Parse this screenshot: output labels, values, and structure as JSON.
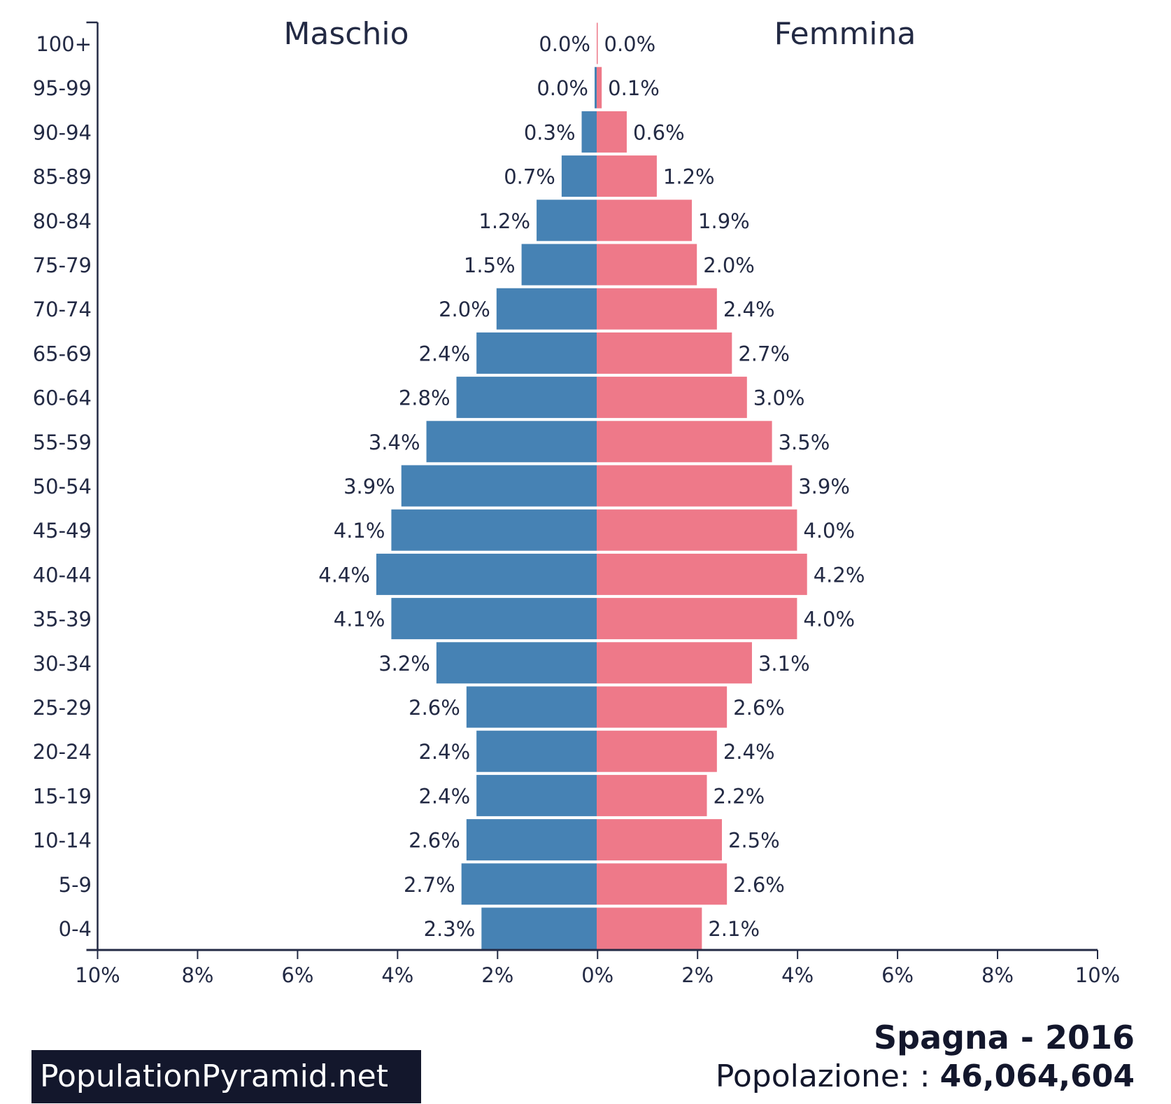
{
  "chart_data": {
    "type": "bar",
    "subtype": "population-pyramid",
    "categories": [
      "100+",
      "95-99",
      "90-94",
      "85-89",
      "80-84",
      "75-79",
      "70-74",
      "65-69",
      "60-64",
      "55-59",
      "50-54",
      "45-49",
      "40-44",
      "35-39",
      "30-34",
      "25-29",
      "20-24",
      "15-19",
      "10-14",
      "5-9",
      "0-4"
    ],
    "series": [
      {
        "name": "Maschio",
        "color": "#4682b4",
        "values": [
          0.0,
          0.0,
          0.3,
          0.7,
          1.2,
          1.5,
          2.0,
          2.4,
          2.8,
          3.4,
          3.9,
          4.1,
          4.4,
          4.1,
          3.2,
          2.6,
          2.4,
          2.4,
          2.6,
          2.7,
          2.3
        ]
      },
      {
        "name": "Femmina",
        "color": "#ee7989",
        "values": [
          0.0,
          0.1,
          0.6,
          1.2,
          1.9,
          2.0,
          2.4,
          2.7,
          3.0,
          3.5,
          3.9,
          4.0,
          4.2,
          4.0,
          3.1,
          2.6,
          2.4,
          2.2,
          2.5,
          2.6,
          2.1
        ]
      }
    ],
    "xlim": [
      -10,
      10
    ],
    "xticks": [
      "10%",
      "8%",
      "6%",
      "4%",
      "2%",
      "0%",
      "2%",
      "4%",
      "6%",
      "8%",
      "10%"
    ],
    "title": "Spagna - 2016",
    "subtitle_label": "Popolazione: :",
    "subtitle_value": "46,064,604",
    "grid": false
  },
  "brand": "PopulationPyramid.net"
}
